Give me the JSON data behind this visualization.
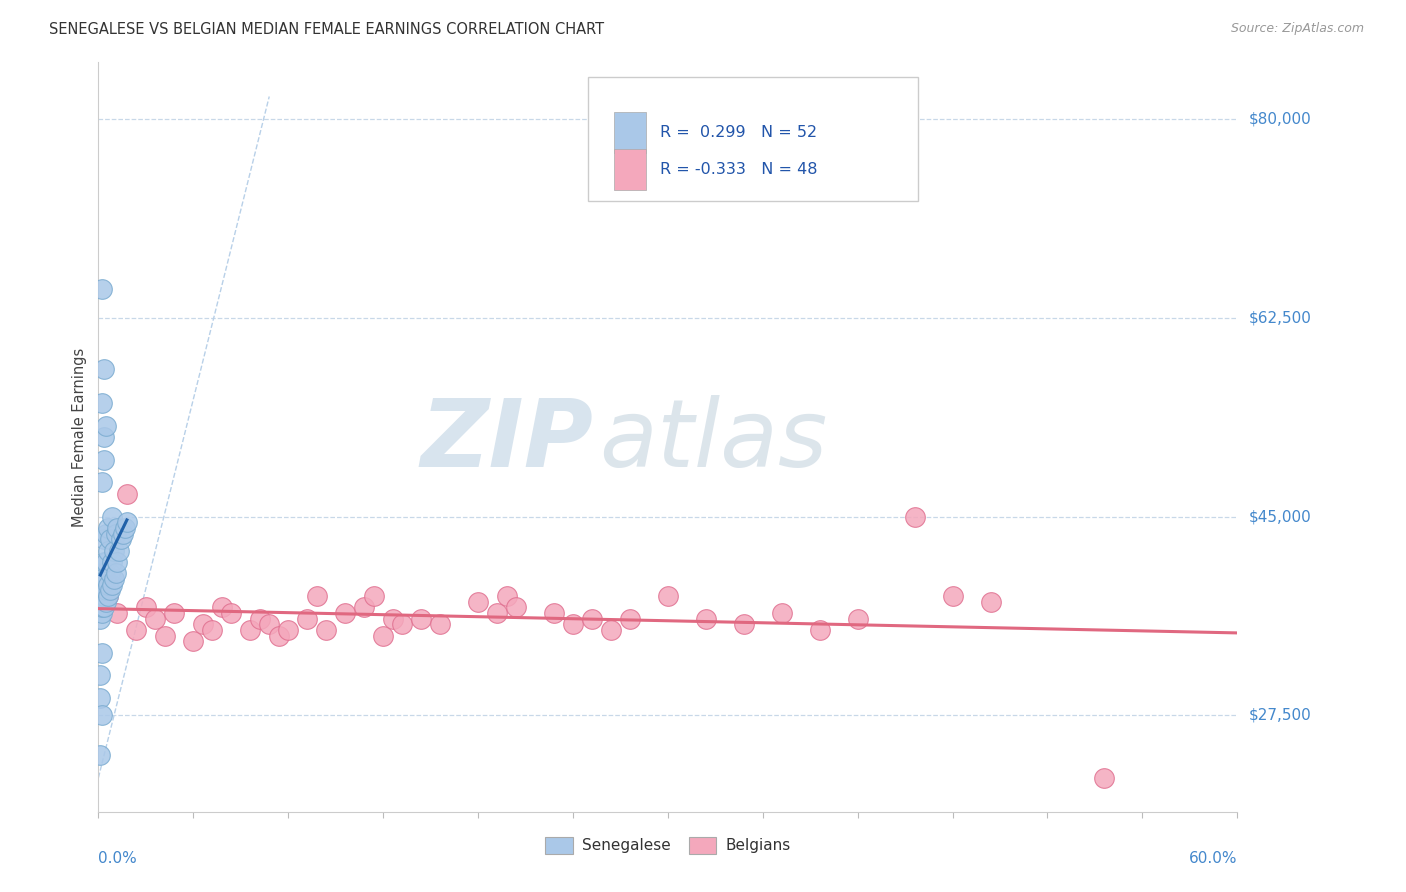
{
  "title": "SENEGALESE VS BELGIAN MEDIAN FEMALE EARNINGS CORRELATION CHART",
  "source": "Source: ZipAtlas.com",
  "ylabel": "Median Female Earnings",
  "xmin": 0.0,
  "xmax": 0.6,
  "ymin": 19000,
  "ymax": 85000,
  "ytick_vals": [
    27500,
    45000,
    62500,
    80000
  ],
  "senegalese_color": "#aac8e8",
  "senegalese_edge": "#7aabd0",
  "belgians_color": "#f4a8bc",
  "belgians_edge": "#e07090",
  "blue_line_color": "#2060a8",
  "pink_line_color": "#e06880",
  "diag_line_color": "#b8d0e8",
  "watermark_zip_color": "#ccdaec",
  "watermark_atlas_color": "#c8d8e4",
  "R_senegalese": 0.299,
  "N_senegalese": 52,
  "R_belgians": -0.333,
  "N_belgians": 48,
  "senegalese_x": [
    0.001,
    0.001,
    0.001,
    0.002,
    0.002,
    0.002,
    0.002,
    0.002,
    0.003,
    0.003,
    0.003,
    0.003,
    0.003,
    0.003,
    0.004,
    0.004,
    0.004,
    0.004,
    0.004,
    0.005,
    0.005,
    0.005,
    0.005,
    0.006,
    0.006,
    0.006,
    0.007,
    0.007,
    0.007,
    0.008,
    0.008,
    0.009,
    0.009,
    0.01,
    0.01,
    0.011,
    0.012,
    0.013,
    0.014,
    0.015,
    0.002,
    0.003,
    0.002,
    0.003,
    0.004,
    0.002,
    0.003,
    0.001,
    0.002,
    0.001,
    0.002,
    0.001
  ],
  "senegalese_y": [
    36000,
    37500,
    38500,
    36500,
    37000,
    38000,
    39000,
    40000,
    37000,
    38000,
    39000,
    40000,
    41000,
    43000,
    37500,
    38500,
    39500,
    41000,
    43500,
    38000,
    39000,
    42000,
    44000,
    38500,
    40000,
    43000,
    39000,
    41000,
    45000,
    39500,
    42000,
    40000,
    43500,
    41000,
    44000,
    42000,
    43000,
    43500,
    44000,
    44500,
    55000,
    52000,
    48000,
    50000,
    53000,
    65000,
    58000,
    29000,
    27500,
    31000,
    33000,
    24000
  ],
  "belgians_x": [
    0.005,
    0.01,
    0.015,
    0.02,
    0.025,
    0.03,
    0.035,
    0.04,
    0.05,
    0.055,
    0.06,
    0.065,
    0.07,
    0.08,
    0.085,
    0.09,
    0.095,
    0.1,
    0.11,
    0.115,
    0.12,
    0.13,
    0.14,
    0.145,
    0.15,
    0.155,
    0.16,
    0.17,
    0.18,
    0.2,
    0.21,
    0.215,
    0.22,
    0.24,
    0.25,
    0.26,
    0.27,
    0.28,
    0.3,
    0.32,
    0.34,
    0.36,
    0.38,
    0.4,
    0.43,
    0.45,
    0.47,
    0.53
  ],
  "belgians_y": [
    38000,
    36500,
    47000,
    35000,
    37000,
    36000,
    34500,
    36500,
    34000,
    35500,
    35000,
    37000,
    36500,
    35000,
    36000,
    35500,
    34500,
    35000,
    36000,
    38000,
    35000,
    36500,
    37000,
    38000,
    34500,
    36000,
    35500,
    36000,
    35500,
    37500,
    36500,
    38000,
    37000,
    36500,
    35500,
    36000,
    35000,
    36000,
    38000,
    36000,
    35500,
    36500,
    35000,
    36000,
    45000,
    38000,
    37500,
    22000
  ]
}
